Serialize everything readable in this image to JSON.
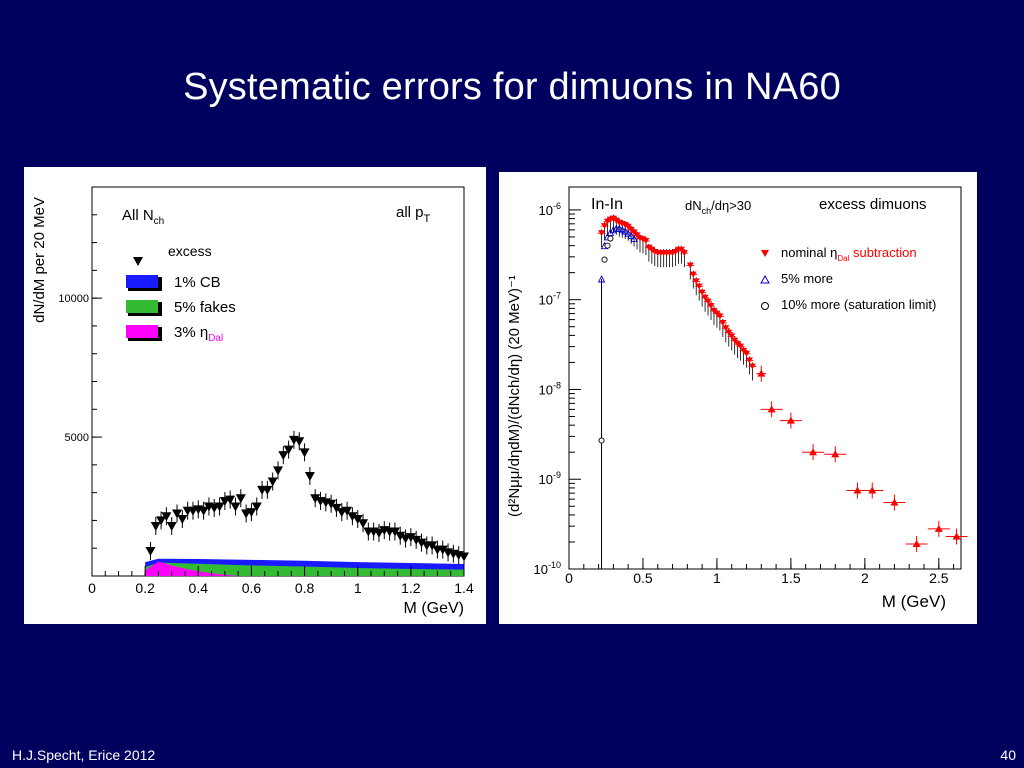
{
  "slide": {
    "title": "Systematic errors for dimuons in NA60",
    "footer_author": "H.J.Specht, Erice 2012",
    "page_number": "40"
  },
  "chart_data": [
    {
      "type": "scatter",
      "ylabel": "dN/dM per 20 MeV",
      "xlabel": "M (GeV)",
      "xlim": [
        0,
        1.4
      ],
      "ylim": [
        0,
        14000
      ],
      "x_ticks": [
        "0",
        "0.2",
        "0.4",
        "0.6",
        "0.8",
        "1",
        "1.2",
        "1.4"
      ],
      "y_ticks": [
        "5000",
        "10000"
      ],
      "corner_left": "All N",
      "corner_left_sub": "ch",
      "corner_right": "all p",
      "corner_right_sub": "T",
      "legend": [
        {
          "label": "excess",
          "color": "#000000",
          "marker": "down-triangle"
        },
        {
          "label": "1% CB",
          "color": "#1a1aff",
          "marker": "box",
          "text_color": "#1a1aff"
        },
        {
          "label": "5% fakes",
          "color": "#33bb33",
          "marker": "box",
          "text_color": "#22aa44"
        },
        {
          "label": "3% η",
          "sub": "Dal",
          "color": "#ff00ff",
          "marker": "box",
          "text_color": "#ff00ff"
        }
      ],
      "excess": {
        "x": [
          0.22,
          0.24,
          0.26,
          0.28,
          0.3,
          0.32,
          0.34,
          0.36,
          0.38,
          0.4,
          0.42,
          0.44,
          0.46,
          0.48,
          0.5,
          0.52,
          0.54,
          0.56,
          0.58,
          0.6,
          0.62,
          0.64,
          0.66,
          0.68,
          0.7,
          0.72,
          0.74,
          0.76,
          0.78,
          0.8,
          0.82,
          0.84,
          0.86,
          0.88,
          0.9,
          0.92,
          0.94,
          0.96,
          0.98,
          1.0,
          1.02,
          1.04,
          1.06,
          1.08,
          1.1,
          1.12,
          1.14,
          1.16,
          1.18,
          1.2,
          1.22,
          1.24,
          1.26,
          1.28,
          1.3,
          1.32,
          1.34,
          1.36,
          1.38,
          1.4
        ],
        "y": [
          900,
          1800,
          2000,
          2150,
          1800,
          2250,
          2050,
          2350,
          2350,
          2400,
          2350,
          2500,
          2450,
          2500,
          2700,
          2750,
          2500,
          2800,
          2250,
          2300,
          2500,
          3100,
          3100,
          3400,
          3800,
          4350,
          4550,
          4900,
          4850,
          4450,
          3600,
          2800,
          2700,
          2650,
          2600,
          2450,
          2300,
          2350,
          2150,
          2050,
          1900,
          1600,
          1600,
          1550,
          1650,
          1600,
          1600,
          1450,
          1350,
          1400,
          1300,
          1200,
          1100,
          1100,
          950,
          950,
          850,
          800,
          750,
          700
        ]
      },
      "bands": [
        {
          "name": "1% CB",
          "color": "#1a1aff",
          "x": [
            0.2,
            0.25,
            0.4,
            0.6,
            0.8,
            1.0,
            1.2,
            1.4
          ],
          "y": [
            500,
            620,
            610,
            580,
            550,
            500,
            470,
            430
          ]
        },
        {
          "name": "5% fakes",
          "color": "#33bb33",
          "x": [
            0.2,
            0.25,
            0.4,
            0.6,
            0.8,
            1.0,
            1.2,
            1.4
          ],
          "y": [
            320,
            480,
            440,
            380,
            340,
            290,
            250,
            230
          ]
        },
        {
          "name": "3% η Dal",
          "color": "#ff00ff",
          "x": [
            0.2,
            0.25,
            0.3,
            0.35,
            0.4,
            0.45,
            0.5,
            0.55
          ],
          "y": [
            200,
            520,
            380,
            260,
            170,
            100,
            50,
            0
          ]
        }
      ]
    },
    {
      "type": "scatter",
      "ylabel": "(d²Nμμ/dηdM)/(dNch/dη) (20 MeV)⁻¹",
      "xlabel": "M (GeV)",
      "xlim": [
        0,
        2.65
      ],
      "ylim": [
        1e-10,
        1.8e-06
      ],
      "log_y": true,
      "x_ticks": [
        "0",
        "0.5",
        "1",
        "1.5",
        "2",
        "2.5"
      ],
      "y_ticks": [
        "10",
        "10",
        "10",
        "10",
        "10"
      ],
      "y_tick_exp": [
        "-6",
        "-7",
        "-8",
        "-9",
        "-10"
      ],
      "top_left": "In-In",
      "top_mid": "dN",
      "top_mid_sub": "ch",
      "top_mid_tail": "/dη>30",
      "top_right": "excess dimuons",
      "legend": [
        {
          "label": "nominal η",
          "sub": "Dal",
          "tail": " subtraction",
          "color": "#ff0000",
          "marker": "down-triangle",
          "text_color": "#ff0000"
        },
        {
          "label": "5% more",
          "color": "#0000cc",
          "marker": "open-triangle",
          "text_color": "#0000cc"
        },
        {
          "label": "10% more (saturation limit)",
          "color": "#000000",
          "marker": "open-circle",
          "text_color": "#000000"
        }
      ],
      "nominal": {
        "x": [
          0.22,
          0.24,
          0.26,
          0.28,
          0.3,
          0.32,
          0.34,
          0.36,
          0.38,
          0.4,
          0.42,
          0.44,
          0.46,
          0.48,
          0.5,
          0.52,
          0.54,
          0.56,
          0.58,
          0.6,
          0.62,
          0.64,
          0.66,
          0.68,
          0.7,
          0.72,
          0.74,
          0.76,
          0.78,
          0.82,
          0.84,
          0.86,
          0.88,
          0.9,
          0.92,
          0.94,
          0.96,
          0.98,
          1.0,
          1.02,
          1.04,
          1.06,
          1.08,
          1.1,
          1.12,
          1.14,
          1.16,
          1.18,
          1.2,
          1.22,
          1.24
        ],
        "y": [
          5.5e-07,
          6.6e-07,
          7.4e-07,
          7.8e-07,
          8e-07,
          7.6e-07,
          7.2e-07,
          7e-07,
          6.8e-07,
          6.5e-07,
          6e-07,
          5.6e-07,
          5.2e-07,
          4.8e-07,
          4.7e-07,
          4.5e-07,
          3.8e-07,
          3.6e-07,
          3.4e-07,
          3.3e-07,
          3.3e-07,
          3.3e-07,
          3.3e-07,
          3.3e-07,
          3.3e-07,
          3.4e-07,
          3.6e-07,
          3.6e-07,
          3.3e-07,
          2.4e-07,
          1.9e-07,
          1.6e-07,
          1.4e-07,
          1.2e-07,
          1.05e-07,
          9.5e-08,
          8.5e-08,
          7.5e-08,
          7e-08,
          6.5e-08,
          5.5e-08,
          4.8e-08,
          4.3e-08,
          3.9e-08,
          3.5e-08,
          3.2e-08,
          3e-08,
          2.7e-08,
          2.5e-08,
          2.1e-08,
          1.8e-08
        ]
      },
      "tail": {
        "x": [
          1.3,
          1.37,
          1.5,
          1.65,
          1.8,
          1.95,
          2.05,
          2.2,
          2.35,
          2.5,
          2.62
        ],
        "y": [
          1.5e-08,
          6e-09,
          4.5e-09,
          2e-09,
          1.9e-09,
          7.5e-10,
          7.5e-10,
          5.5e-10,
          1.9e-10,
          2.8e-10,
          2.3e-10
        ]
      },
      "open_triangles": {
        "x": [
          0.22,
          0.24,
          0.26,
          0.28,
          0.3,
          0.32,
          0.34,
          0.36,
          0.38,
          0.4,
          0.42,
          0.44
        ],
        "y": [
          1.7e-07,
          4e-07,
          5e-07,
          5.6e-07,
          6e-07,
          6.2e-07,
          6.2e-07,
          6e-07,
          5.8e-07,
          5.5e-07,
          5.2e-07,
          4.8e-07
        ]
      },
      "open_circles": {
        "x": [
          0.22,
          0.24,
          0.26,
          0.28
        ],
        "y": [
          2.7e-09,
          2.8e-07,
          4e-07,
          4.8e-07
        ]
      }
    }
  ]
}
